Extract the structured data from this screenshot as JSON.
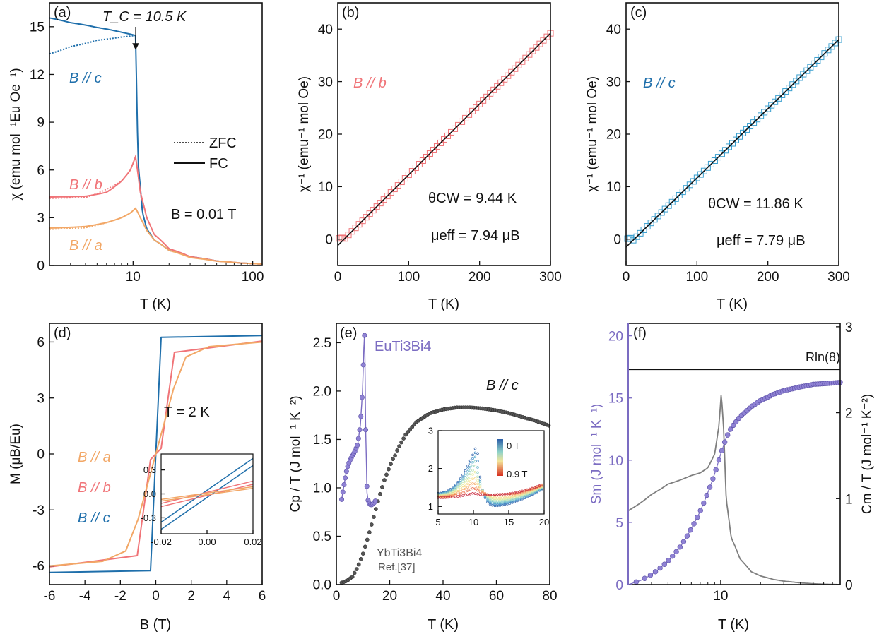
{
  "figure": {
    "colors": {
      "a": "#f2a766",
      "b": "#f07478",
      "c": "#1f6fab",
      "purple": "#7b6cc2",
      "gray": "#7f7f7f",
      "black": "#111111"
    }
  },
  "chart_data": [
    {
      "id": "a",
      "type": "line",
      "panel_label": "(a)",
      "xlabel": "T (K)",
      "ylabel": "χ (emu mol⁻¹Eu Oe⁻¹)",
      "xscale": "log",
      "xlim": [
        2,
        120
      ],
      "ylim": [
        0,
        16.5
      ],
      "xticks": [
        10,
        100
      ],
      "xtick_labels": [
        "10",
        "100"
      ],
      "yticks": [
        0,
        3,
        6,
        9,
        12,
        15
      ],
      "ytick_labels": [
        "0",
        "3",
        "6",
        "9",
        "12",
        "15"
      ],
      "annotation_tc": "T_C = 10.5 K",
      "legend": {
        "zfc": "ZFC",
        "fc": "FC"
      },
      "field_label": "B = 0.01 T",
      "series_labels": {
        "a": "B // a",
        "b": "B // b",
        "c": "B // c"
      },
      "series": [
        {
          "name": "B // c FC",
          "x": [
            2,
            3,
            5,
            8,
            10.5,
            11,
            12,
            13,
            15,
            20,
            30,
            50,
            80,
            120
          ],
          "y": [
            15.55,
            15.25,
            14.95,
            14.65,
            14.45,
            6.5,
            3.3,
            2.3,
            1.6,
            0.95,
            0.55,
            0.28,
            0.15,
            0.09
          ]
        },
        {
          "name": "B // c ZFC",
          "x": [
            2,
            3,
            5,
            8,
            10.5
          ],
          "y": [
            13.3,
            13.75,
            14.15,
            14.35,
            14.45
          ]
        },
        {
          "name": "B // b",
          "x": [
            2,
            4,
            6,
            8,
            9.5,
            10.5,
            11.5,
            13,
            15,
            20,
            30,
            50,
            80,
            120
          ],
          "y": [
            4.3,
            4.35,
            4.6,
            5.3,
            6.0,
            6.85,
            4.6,
            3.0,
            1.95,
            1.05,
            0.55,
            0.28,
            0.15,
            0.09
          ]
        },
        {
          "name": "B // a",
          "x": [
            2,
            4,
            6,
            8,
            9.5,
            10.5,
            11.5,
            13,
            15,
            20,
            30,
            50,
            80,
            120
          ],
          "y": [
            2.35,
            2.45,
            2.7,
            3.0,
            3.3,
            3.6,
            3.0,
            2.2,
            1.6,
            0.95,
            0.5,
            0.27,
            0.15,
            0.09
          ]
        }
      ]
    },
    {
      "id": "b",
      "type": "scatter",
      "panel_label": "(b)",
      "xlabel": "T (K)",
      "ylabel": "χ⁻¹ (emu⁻¹ mol Oe)",
      "xlim": [
        0,
        300
      ],
      "ylim": [
        -5,
        45
      ],
      "xticks": [
        0,
        100,
        200,
        300
      ],
      "xtick_labels": [
        "0",
        "100",
        "200",
        "300"
      ],
      "yticks": [
        0,
        10,
        20,
        30,
        40
      ],
      "ytick_labels": [
        "0",
        "10",
        "20",
        "30",
        "40"
      ],
      "series_label": "B // b",
      "theta_cw": "θCW = 9.44 K",
      "mu_eff": "μeff = 7.94 μB",
      "fit": {
        "x": [
          0,
          300
        ],
        "y": [
          -1.2,
          39.2
        ]
      }
    },
    {
      "id": "c",
      "type": "scatter",
      "panel_label": "(c)",
      "xlabel": "T (K)",
      "ylabel": "χ⁻¹ (emu⁻¹ mol Oe)",
      "xlim": [
        0,
        300
      ],
      "ylim": [
        -5,
        45
      ],
      "xticks": [
        0,
        100,
        200,
        300
      ],
      "xtick_labels": [
        "0",
        "100",
        "200",
        "300"
      ],
      "yticks": [
        0,
        10,
        20,
        30,
        40
      ],
      "ytick_labels": [
        "0",
        "10",
        "20",
        "30",
        "40"
      ],
      "series_label": "B // c",
      "theta_cw": "θCW = 11.86 K",
      "mu_eff": "μeff = 7.79 μB",
      "fit": {
        "x": [
          0,
          300
        ],
        "y": [
          -1.5,
          38.0
        ]
      }
    },
    {
      "id": "d",
      "type": "line",
      "panel_label": "(d)",
      "xlabel": "B (T)",
      "ylabel": "M (μB/Eu)",
      "xlim": [
        -6,
        6
      ],
      "ylim": [
        -7,
        7
      ],
      "xticks": [
        -6,
        -4,
        -2,
        0,
        2,
        4,
        6
      ],
      "xtick_labels": [
        "-6",
        "-4",
        "-2",
        "0",
        "2",
        "4",
        "6"
      ],
      "yticks": [
        -6,
        -3,
        0,
        3,
        6
      ],
      "ytick_labels": [
        "-6",
        "-3",
        "0",
        "3",
        "6"
      ],
      "temperature_label": "T = 2 K",
      "series_labels": {
        "a": "B // a",
        "b": "B // b",
        "c": "B // c"
      },
      "series": [
        {
          "name": "B // c",
          "x": [
            -6,
            -0.3,
            0.3,
            6
          ],
          "y": [
            -6.35,
            -6.25,
            6.25,
            6.35
          ]
        },
        {
          "name": "B // b",
          "x": [
            -6,
            -1.05,
            -0.3,
            0.3,
            1.05,
            6
          ],
          "y": [
            -6.05,
            -5.45,
            -0.3,
            0.3,
            5.45,
            6.05
          ]
        },
        {
          "name": "B // a",
          "x": [
            -6,
            -3,
            -1.7,
            -1,
            0,
            1,
            1.7,
            3,
            6
          ],
          "y": [
            -6.0,
            -5.75,
            -5.2,
            -3.5,
            0,
            3.5,
            5.2,
            5.75,
            6.0
          ]
        }
      ],
      "inset": {
        "xlim": [
          -0.02,
          0.02
        ],
        "ylim": [
          -0.5,
          0.5
        ],
        "xticks": [
          -0.02,
          0,
          0.02
        ],
        "xtick_labels": [
          "-0.02",
          "0.00",
          "0.02"
        ],
        "yticks": [
          -0.3,
          0,
          0.3
        ],
        "ytick_labels": [
          "-0.3",
          "0.0",
          "0.3"
        ],
        "loops": [
          {
            "name": "B // c",
            "slope": 20,
            "offset": 0.045
          },
          {
            "name": "B // b",
            "slope": 7,
            "offset": 0.02
          },
          {
            "name": "B // a",
            "slope": 4,
            "offset": 0.01
          }
        ]
      }
    },
    {
      "id": "e",
      "type": "scatter",
      "panel_label": "(e)",
      "xlabel": "T (K)",
      "ylabel": "Cp / T (J mol⁻¹ K⁻²)",
      "xlim": [
        0,
        80
      ],
      "ylim": [
        0,
        2.7
      ],
      "xticks": [
        0,
        20,
        40,
        60,
        80
      ],
      "xtick_labels": [
        "0",
        "20",
        "40",
        "60",
        "80"
      ],
      "yticks": [
        0,
        0.5,
        1.0,
        1.5,
        2.0,
        2.5
      ],
      "ytick_labels": [
        "0.0",
        "0.5",
        "1.0",
        "1.5",
        "2.0",
        "2.5"
      ],
      "compound_label": "EuTi3Bi4",
      "field_label": "B // c",
      "reference_label": "YbTi3Bi4",
      "reference_citation": "Ref.[37]",
      "series": [
        {
          "name": "EuTi3Bi4",
          "x": [
            2,
            3,
            4,
            5,
            6,
            7,
            8,
            9,
            9.8,
            10.3,
            10.6,
            11,
            11.5,
            12,
            13,
            14,
            15,
            17,
            20,
            23,
            26,
            30,
            35,
            40,
            45,
            50,
            55,
            60,
            65,
            70,
            75,
            80
          ],
          "y": [
            0.88,
            1.05,
            1.2,
            1.28,
            1.33,
            1.38,
            1.45,
            1.65,
            2.0,
            2.45,
            2.6,
            1.6,
            0.95,
            0.85,
            0.82,
            0.84,
            0.88,
            1.0,
            1.2,
            1.4,
            1.55,
            1.68,
            1.77,
            1.81,
            1.83,
            1.83,
            1.82,
            1.8,
            1.77,
            1.73,
            1.69,
            1.64
          ]
        },
        {
          "name": "YbTi3Bi4",
          "x": [
            2,
            4,
            6,
            8,
            10,
            12,
            14,
            16,
            18,
            20,
            22
          ],
          "y": [
            0.02,
            0.04,
            0.08,
            0.18,
            0.32,
            0.5,
            0.7,
            0.9,
            1.08,
            1.22,
            1.35
          ]
        }
      ],
      "inset": {
        "xlim": [
          5,
          20
        ],
        "ylim": [
          0.8,
          3.0
        ],
        "xticks": [
          5,
          10,
          15,
          20
        ],
        "xtick_labels": [
          "5",
          "10",
          "15",
          "20"
        ],
        "yticks": [
          1,
          2,
          3
        ],
        "ytick_labels": [
          "1",
          "2",
          "3"
        ],
        "colorbar_top": "0 T",
        "colorbar_bottom": "0.9 T",
        "field_values": [
          0,
          0.1,
          0.2,
          0.3,
          0.4,
          0.5,
          0.6,
          0.7,
          0.8,
          0.9
        ]
      }
    },
    {
      "id": "f",
      "type": "line",
      "panel_label": "(f)",
      "xlabel": "T (K)",
      "ylabel_left": "Sm (J mol⁻¹ K⁻¹)",
      "ylabel_right": "Cm / T (J mol⁻¹ K⁻²)",
      "xscale": "log",
      "xlim": [
        2,
        80
      ],
      "ylim_left": [
        0,
        21
      ],
      "ylim_right": [
        0,
        3.04
      ],
      "xticks": [
        10
      ],
      "xtick_labels": [
        "10"
      ],
      "yticks_left": [
        0,
        5,
        10,
        15,
        20
      ],
      "ytick_labels_left": [
        "0",
        "5",
        "10",
        "15",
        "20"
      ],
      "yticks_right": [
        0,
        1,
        2,
        3
      ],
      "ytick_labels_right": [
        "0",
        "1",
        "2",
        "3"
      ],
      "rln_label": "Rln(8)",
      "rln_value": 17.29,
      "series": [
        {
          "name": "Sm",
          "x": [
            2,
            2.5,
            3,
            4,
            5,
            6,
            7,
            8,
            9,
            10,
            11,
            12,
            14,
            17,
            20,
            25,
            30,
            40,
            50,
            60,
            80
          ],
          "y": [
            0,
            0.35,
            0.8,
            1.9,
            3.1,
            4.5,
            5.9,
            7.4,
            8.9,
            10.5,
            11.8,
            12.6,
            13.5,
            14.3,
            14.8,
            15.3,
            15.6,
            15.9,
            16.1,
            16.15,
            16.25
          ]
        },
        {
          "name": "Cm/T",
          "x": [
            2,
            3,
            4,
            5,
            6,
            7,
            8,
            9,
            9.7,
            10.1,
            10.5,
            11,
            12,
            14,
            17,
            20,
            25,
            30,
            40,
            50,
            60,
            80
          ],
          "y": [
            0.86,
            1.05,
            1.17,
            1.22,
            1.27,
            1.3,
            1.36,
            1.52,
            1.85,
            2.22,
            1.85,
            1.0,
            0.55,
            0.3,
            0.15,
            0.1,
            0.06,
            0.04,
            0.02,
            0.01,
            0.005,
            0.0
          ]
        }
      ]
    }
  ]
}
